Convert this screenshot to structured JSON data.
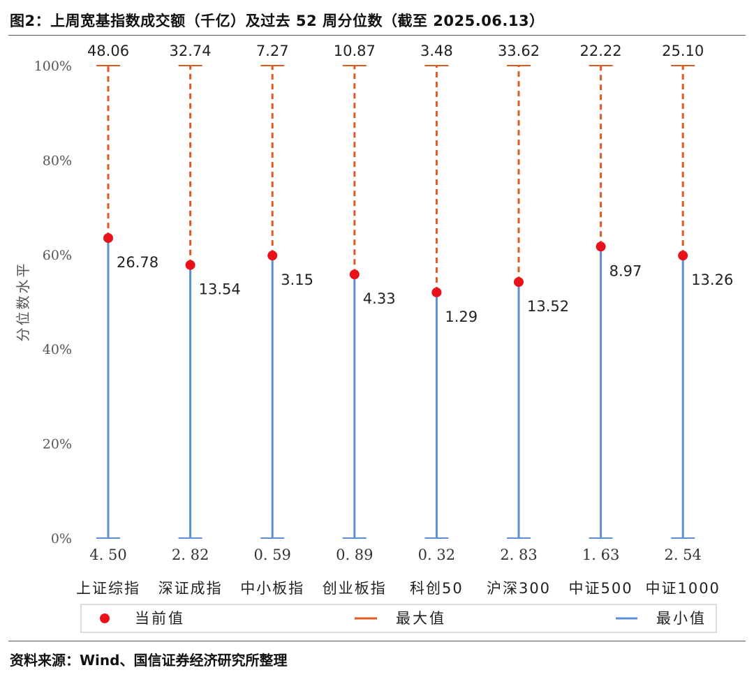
{
  "title": "图2：上周宽基指数成交额（千亿）及过去 52 周分位数（截至 2025.06.13）",
  "source": "资料来源：Wind、国信证券经济研究所整理",
  "colors": {
    "current": "#e8121b",
    "max": "#e05a1f",
    "min": "#5b8fd6",
    "axis_text": "#555555"
  },
  "chart_data": {
    "type": "dot-range",
    "ylabel": "分位数水平",
    "ylim": [
      0,
      100
    ],
    "yticks": [
      0,
      20,
      40,
      60,
      80,
      100
    ],
    "ytick_labels": [
      "0%",
      "20%",
      "40%",
      "60%",
      "80%",
      "100%"
    ],
    "categories": [
      "上证综指",
      "深证成指",
      "中小板指",
      "创业板指",
      "科创50",
      "沪深300",
      "中证500",
      "中证1000"
    ],
    "max_values": [
      "48.06",
      "32.74",
      "7.27",
      "10.87",
      "3.48",
      "33.62",
      "22.22",
      "25.10"
    ],
    "current_values": [
      "26.78",
      "13.54",
      "3.15",
      "4.33",
      "1.29",
      "13.52",
      "8.97",
      "13.26"
    ],
    "min_values": [
      "4. 50",
      "2. 82",
      "0. 59",
      "0. 89",
      "0. 32",
      "2. 83",
      "1. 63",
      "2. 54"
    ],
    "current_percentile": [
      63.5,
      57.8,
      59.8,
      55.8,
      52.0,
      54.2,
      61.7,
      59.8
    ],
    "legend": [
      "当前值",
      "最大值",
      "最小值"
    ],
    "legend_position": "bottom"
  }
}
